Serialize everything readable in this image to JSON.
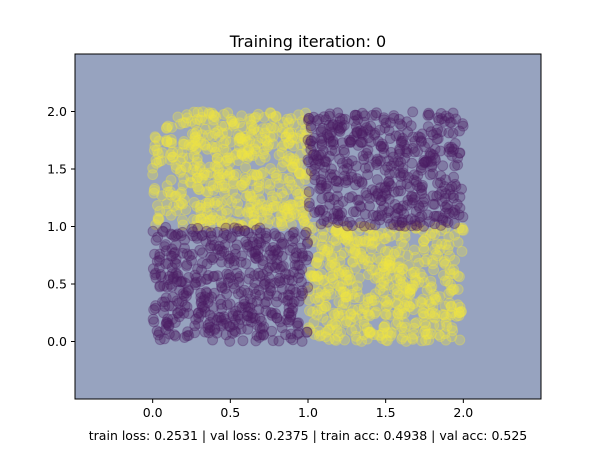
{
  "chart_data": {
    "type": "scatter",
    "title": "Training iteration: 0",
    "xlabel": "train loss: 0.2531 | val loss: 0.2375 | train acc: 0.4938 | val acc: 0.525",
    "ylabel": "",
    "xlim": [
      -0.5,
      2.5
    ],
    "ylim": [
      -0.5,
      2.5
    ],
    "xticks": [
      "0.0",
      "0.5",
      "1.0",
      "1.5",
      "2.0"
    ],
    "yticks": [
      "0.0",
      "0.5",
      "1.0",
      "1.5",
      "2.0"
    ],
    "background_color": "#97a3bf",
    "grid": false,
    "legend": false,
    "series": [
      {
        "color": "#f0e442",
        "regions": [
          {
            "x": [
              0.0,
              1.0
            ],
            "y": [
              1.0,
              2.0
            ]
          },
          {
            "x": [
              1.0,
              2.0
            ],
            "y": [
              0.0,
              1.0
            ]
          }
        ],
        "approx_points_per_region": 480
      },
      {
        "color": "#4b1d63",
        "regions": [
          {
            "x": [
              1.0,
              2.0
            ],
            "y": [
              1.0,
              2.0
            ]
          },
          {
            "x": [
              0.0,
              1.0
            ],
            "y": [
              0.0,
              1.0
            ]
          }
        ],
        "approx_points_per_region": 480
      }
    ]
  }
}
